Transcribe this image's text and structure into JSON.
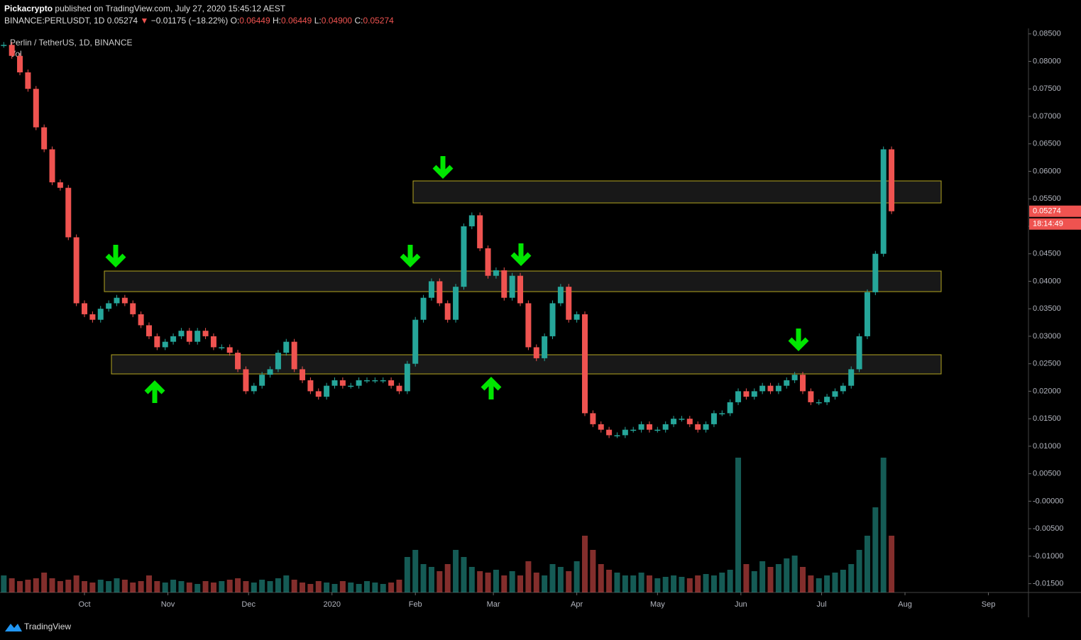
{
  "header": {
    "author": "Pickacrypto",
    "published": "published on TradingView.com, July 27, 2020 15:45:12 AEST",
    "symbol": "BINANCE:PERLUSDT, 1D",
    "last": "0.05274",
    "arrow": "▼",
    "change": "−0.01175 (−18.22%)",
    "o_label": "O:",
    "o": "0.06449",
    "h_label": "H:",
    "h": "0.06449",
    "l_label": "L:",
    "l": "0.04900",
    "c_label": "C:",
    "c": "0.05274"
  },
  "legend": {
    "pair": "Perlin / TetherUS, 1D, BINANCE",
    "volume": "Vol"
  },
  "countdown": "18:14:49",
  "footer": "TradingView",
  "chart_data": {
    "type": "candlestick",
    "up_color": "#26a69a",
    "down_color": "#ef5350",
    "xlim": [
      -31.4,
      350.9
    ],
    "xticks": [
      {
        "value": 0,
        "label": "Oct"
      },
      {
        "value": 31,
        "label": "Nov"
      },
      {
        "value": 61,
        "label": "Dec"
      },
      {
        "value": 92,
        "label": "2020"
      },
      {
        "value": 123,
        "label": "Feb"
      },
      {
        "value": 152,
        "label": "Mar"
      },
      {
        "value": 183,
        "label": "Apr"
      },
      {
        "value": 213,
        "label": "May"
      },
      {
        "value": 244,
        "label": "Jun"
      },
      {
        "value": 274,
        "label": "Jul"
      },
      {
        "value": 305,
        "label": "Aug"
      },
      {
        "value": 336,
        "label": "Sep"
      }
    ],
    "ylim": [
      -0.0166,
      0.086
    ],
    "yticks": [
      {
        "value": 0.085,
        "label": "0.08500"
      },
      {
        "value": 0.08,
        "label": "0.08000"
      },
      {
        "value": 0.075,
        "label": "0.07500"
      },
      {
        "value": 0.07,
        "label": "0.07000"
      },
      {
        "value": 0.065,
        "label": "0.06500"
      },
      {
        "value": 0.06,
        "label": "0.06000"
      },
      {
        "value": 0.055,
        "label": "0.05500"
      },
      {
        "value": 0.05,
        "label": "0.05000"
      },
      {
        "value": 0.045,
        "label": "0.04500"
      },
      {
        "value": 0.04,
        "label": "0.04000"
      },
      {
        "value": 0.035,
        "label": "0.03500"
      },
      {
        "value": 0.03,
        "label": "0.03000"
      },
      {
        "value": 0.025,
        "label": "0.02500"
      },
      {
        "value": 0.02,
        "label": "0.02000"
      },
      {
        "value": 0.015,
        "label": "0.01500"
      },
      {
        "value": 0.01,
        "label": "0.01000"
      },
      {
        "value": 0.005,
        "label": "0.00500"
      },
      {
        "value": 0,
        "label": "-0.00000"
      },
      {
        "value": -0.005,
        "label": "-0.00500"
      },
      {
        "value": -0.01,
        "label": "-0.01000"
      },
      {
        "value": -0.015,
        "label": "-0.01500"
      }
    ],
    "last_value": 0.05274,
    "y2lim": [
      0,
      100
    ],
    "x": [
      -30,
      -27,
      -24,
      -21,
      -18,
      -15,
      -12,
      -9,
      -6,
      -3,
      0,
      3,
      6,
      9,
      12,
      15,
      18,
      21,
      24,
      27,
      30,
      33,
      36,
      39,
      42,
      45,
      48,
      51,
      54,
      57,
      60,
      63,
      66,
      69,
      72,
      75,
      78,
      81,
      84,
      87,
      90,
      93,
      96,
      99,
      102,
      105,
      108,
      111,
      114,
      117,
      120,
      123,
      126,
      129,
      132,
      135,
      138,
      141,
      144,
      147,
      150,
      153,
      156,
      159,
      162,
      165,
      168,
      171,
      174,
      177,
      180,
      183,
      186,
      189,
      192,
      195,
      198,
      201,
      204,
      207,
      210,
      213,
      216,
      219,
      222,
      225,
      228,
      231,
      234,
      237,
      240,
      243,
      246,
      249,
      252,
      255,
      258,
      261,
      264,
      267,
      270,
      273,
      276,
      279,
      282,
      285,
      288,
      291,
      294,
      297,
      300
    ],
    "series": [
      {
        "name": "Close",
        "values": [
          0.083,
          0.081,
          0.078,
          0.075,
          0.068,
          0.064,
          0.058,
          0.057,
          0.048,
          0.036,
          0.034,
          0.033,
          0.035,
          0.036,
          0.037,
          0.036,
          0.034,
          0.032,
          0.03,
          0.028,
          0.029,
          0.03,
          0.031,
          0.029,
          0.031,
          0.03,
          0.028,
          0.028,
          0.027,
          0.024,
          0.02,
          0.021,
          0.023,
          0.024,
          0.027,
          0.029,
          0.024,
          0.022,
          0.02,
          0.019,
          0.021,
          0.022,
          0.021,
          0.021,
          0.022,
          0.022,
          0.022,
          0.022,
          0.021,
          0.02,
          0.025,
          0.033,
          0.037,
          0.04,
          0.036,
          0.033,
          0.039,
          0.05,
          0.052,
          0.046,
          0.041,
          0.042,
          0.037,
          0.041,
          0.036,
          0.028,
          0.026,
          0.03,
          0.036,
          0.039,
          0.033,
          0.034,
          0.016,
          0.014,
          0.013,
          0.012,
          0.012,
          0.013,
          0.013,
          0.014,
          0.013,
          0.013,
          0.014,
          0.015,
          0.015,
          0.014,
          0.013,
          0.014,
          0.016,
          0.016,
          0.018,
          0.02,
          0.019,
          0.02,
          0.021,
          0.02,
          0.021,
          0.022,
          0.023,
          0.02,
          0.018,
          0.018,
          0.019,
          0.02,
          0.021,
          0.024,
          0.03,
          0.038,
          0.045,
          0.064,
          0.05274
        ]
      },
      {
        "name": "Vol",
        "axis": "y2",
        "values": [
          12,
          10,
          8,
          9,
          10,
          14,
          10,
          8,
          9,
          12,
          8,
          7,
          9,
          8,
          10,
          9,
          7,
          8,
          12,
          8,
          7,
          9,
          8,
          7,
          6,
          8,
          7,
          8,
          9,
          10,
          8,
          7,
          9,
          8,
          10,
          12,
          9,
          7,
          6,
          8,
          7,
          6,
          8,
          7,
          6,
          8,
          7,
          6,
          7,
          9,
          25,
          30,
          20,
          18,
          15,
          20,
          30,
          25,
          18,
          15,
          14,
          16,
          12,
          15,
          12,
          22,
          14,
          12,
          20,
          18,
          15,
          22,
          40,
          30,
          20,
          16,
          14,
          12,
          12,
          14,
          12,
          10,
          11,
          12,
          11,
          10,
          12,
          13,
          12,
          14,
          16,
          95,
          20,
          15,
          22,
          18,
          20,
          24,
          26,
          18,
          12,
          10,
          12,
          14,
          16,
          20,
          30,
          40,
          60,
          95,
          40
        ]
      }
    ]
  }
}
